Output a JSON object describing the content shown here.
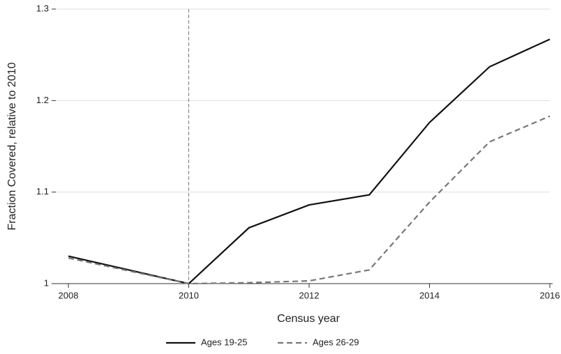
{
  "chart_data": {
    "type": "line",
    "x_label": "Census year",
    "y_label": "Fraction Covered, relative to 2010",
    "x": [
      2008,
      2009,
      2010,
      2011,
      2012,
      2013,
      2014,
      2015,
      2016
    ],
    "series": [
      {
        "name": "Ages 19-25",
        "color": "#111111",
        "dash": "solid",
        "values": [
          1.03,
          1.015,
          1.0,
          1.061,
          1.086,
          1.097,
          1.176,
          1.237,
          1.267
        ]
      },
      {
        "name": "Ages 26-29",
        "color": "#777777",
        "dash": "dashed",
        "values": [
          1.028,
          1.014,
          1.0,
          1.001,
          1.003,
          1.015,
          1.089,
          1.155,
          1.183
        ]
      }
    ],
    "xlim": [
      2008,
      2016
    ],
    "xticks": [
      2008,
      2010,
      2012,
      2014,
      2016
    ],
    "ylim": [
      1,
      1.3
    ],
    "yticks": [
      1,
      1.1,
      1.2,
      1.3
    ],
    "vline": 2010,
    "grid": true,
    "legend": "bottom"
  }
}
